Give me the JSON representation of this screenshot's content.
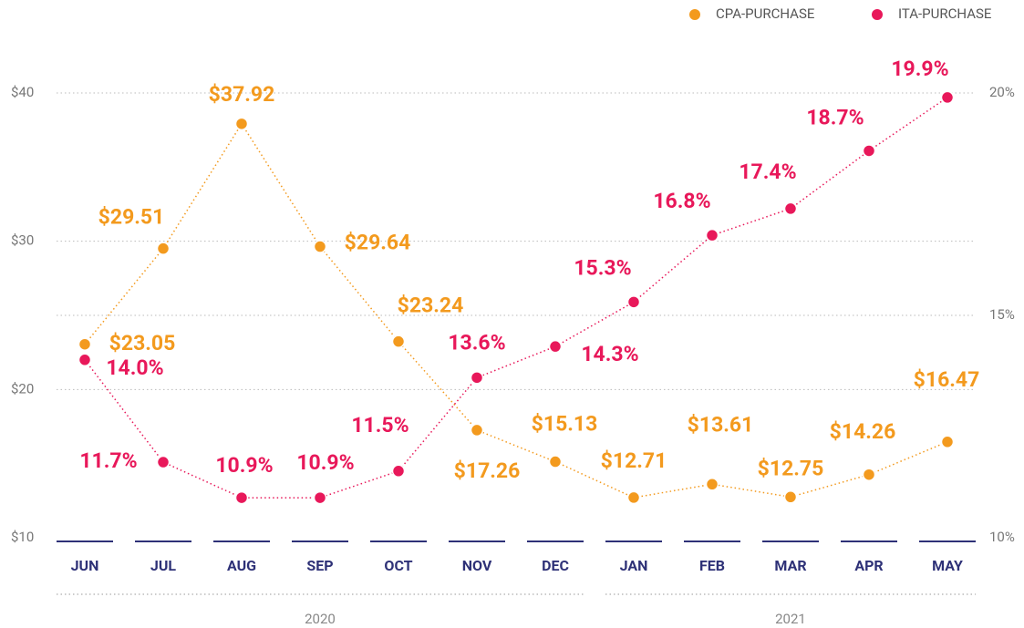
{
  "chart_data": {
    "type": "line",
    "categories": [
      "JUN",
      "JUL",
      "AUG",
      "SEP",
      "OCT",
      "NOV",
      "DEC",
      "JAN",
      "FEB",
      "MAR",
      "APR",
      "MAY"
    ],
    "x_groups": [
      "2020",
      "2021"
    ],
    "series": [
      {
        "name": "CPA-PURCHASE",
        "color": "#f39a1e",
        "axis": "y",
        "values": [
          23.05,
          29.51,
          37.92,
          29.64,
          23.24,
          17.26,
          15.13,
          12.71,
          13.61,
          12.75,
          14.26,
          16.47
        ],
        "value_labels": [
          "$23.05",
          "$29.51",
          "$37.92",
          "$29.64",
          "$23.24",
          "$17.26",
          "$15.13",
          "$12.71",
          "$13.61",
          "$12.75",
          "$14.26",
          "$16.47"
        ]
      },
      {
        "name": "ITA-PURCHASE",
        "color": "#e8185a",
        "axis": "y2",
        "values": [
          14.0,
          11.7,
          10.9,
          10.9,
          11.5,
          13.6,
          14.3,
          15.3,
          16.8,
          17.4,
          18.7,
          19.9
        ],
        "value_labels": [
          "14.0%",
          "11.7%",
          "10.9%",
          "10.9%",
          "11.5%",
          "13.6%",
          "14.3%",
          "15.3%",
          "16.8%",
          "17.4%",
          "18.7%",
          "19.9%"
        ]
      }
    ],
    "ylim": [
      10,
      40
    ],
    "yticks": [
      {
        "value": 10,
        "label": "$10"
      },
      {
        "value": 20,
        "label": "$20"
      },
      {
        "value": 30,
        "label": "$30"
      },
      {
        "value": 40,
        "label": "$40"
      }
    ],
    "y2lim": [
      10,
      20
    ],
    "y2ticks": [
      {
        "value": 10,
        "label": "10%"
      },
      {
        "value": 15,
        "label": "15%"
      },
      {
        "value": 20,
        "label": "20%"
      }
    ],
    "grid": true,
    "legend": "top-right"
  }
}
